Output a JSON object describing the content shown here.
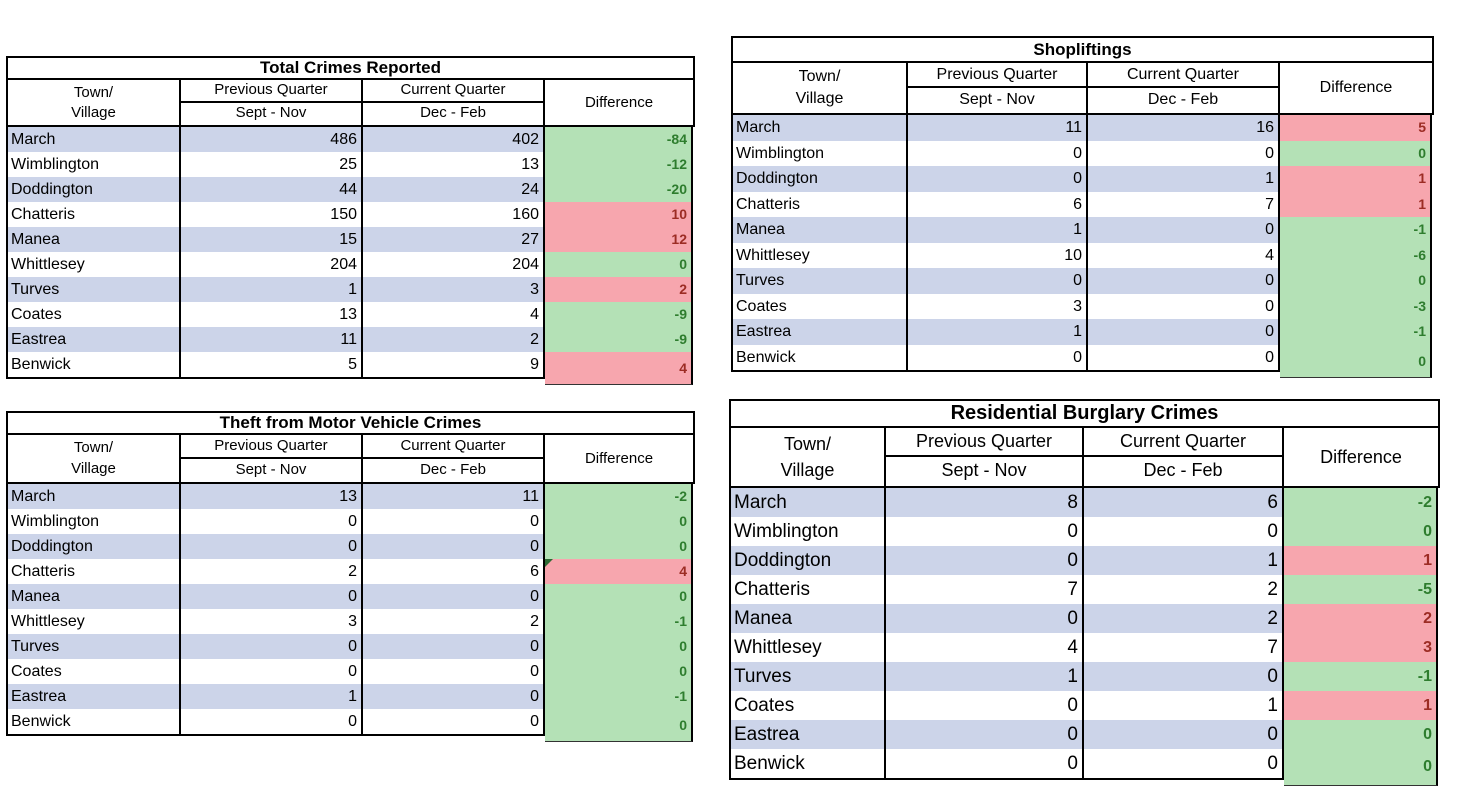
{
  "headers": {
    "town_line1": "Town/",
    "town_line2": "Village",
    "previous_quarter": "Previous Quarter",
    "previous_period": "Sept - Nov",
    "current_quarter": "Current Quarter",
    "current_period": "Dec - Feb",
    "difference": "Difference"
  },
  "colors": {
    "row_stripe": "#ccd4e9",
    "row_plain": "#ffffff",
    "diff_increase_fill": "#f7a6ae",
    "diff_decrease_fill": "#b4e1b6",
    "diff_increase_text": "#9c2c24",
    "diff_decrease_text": "#2e7d2e",
    "border": "#000000",
    "comment_marker": "#2d6a33"
  },
  "tables": [
    {
      "title": "Total Crimes Reported",
      "rows": [
        {
          "town": "March",
          "prev": 486,
          "curr": 402,
          "diff": -84
        },
        {
          "town": "Wimblington",
          "prev": 25,
          "curr": 13,
          "diff": -12
        },
        {
          "town": "Doddington",
          "prev": 44,
          "curr": 24,
          "diff": -20
        },
        {
          "town": "Chatteris",
          "prev": 150,
          "curr": 160,
          "diff": 10
        },
        {
          "town": "Manea",
          "prev": 15,
          "curr": 27,
          "diff": 12
        },
        {
          "town": "Whittlesey",
          "prev": 204,
          "curr": 204,
          "diff": 0
        },
        {
          "town": "Turves",
          "prev": 1,
          "curr": 3,
          "diff": 2
        },
        {
          "town": "Coates",
          "prev": 13,
          "curr": 4,
          "diff": -9
        },
        {
          "town": "Eastrea",
          "prev": 11,
          "curr": 2,
          "diff": -9
        },
        {
          "town": "Benwick",
          "prev": 5,
          "curr": 9,
          "diff": 4
        }
      ]
    },
    {
      "title": "Shopliftings",
      "rows": [
        {
          "town": "March",
          "prev": 11,
          "curr": 16,
          "diff": 5
        },
        {
          "town": "Wimblington",
          "prev": 0,
          "curr": 0,
          "diff": 0
        },
        {
          "town": "Doddington",
          "prev": 0,
          "curr": 1,
          "diff": 1
        },
        {
          "town": "Chatteris",
          "prev": 6,
          "curr": 7,
          "diff": 1
        },
        {
          "town": "Manea",
          "prev": 1,
          "curr": 0,
          "diff": -1
        },
        {
          "town": "Whittlesey",
          "prev": 10,
          "curr": 4,
          "diff": -6
        },
        {
          "town": "Turves",
          "prev": 0,
          "curr": 0,
          "diff": 0
        },
        {
          "town": "Coates",
          "prev": 3,
          "curr": 0,
          "diff": -3
        },
        {
          "town": "Eastrea",
          "prev": 1,
          "curr": 0,
          "diff": -1
        },
        {
          "town": "Benwick",
          "prev": 0,
          "curr": 0,
          "diff": 0
        }
      ]
    },
    {
      "title": "Theft from Motor Vehicle Crimes",
      "rows": [
        {
          "town": "March",
          "prev": 13,
          "curr": 11,
          "diff": -2
        },
        {
          "town": "Wimblington",
          "prev": 0,
          "curr": 0,
          "diff": 0
        },
        {
          "town": "Doddington",
          "prev": 0,
          "curr": 0,
          "diff": 0
        },
        {
          "town": "Chatteris",
          "prev": 2,
          "curr": 6,
          "diff": 4,
          "has_marker": true
        },
        {
          "town": "Manea",
          "prev": 0,
          "curr": 0,
          "diff": 0
        },
        {
          "town": "Whittlesey",
          "prev": 3,
          "curr": 2,
          "diff": -1
        },
        {
          "town": "Turves",
          "prev": 0,
          "curr": 0,
          "diff": 0
        },
        {
          "town": "Coates",
          "prev": 0,
          "curr": 0,
          "diff": 0
        },
        {
          "town": "Eastrea",
          "prev": 1,
          "curr": 0,
          "diff": -1
        },
        {
          "town": "Benwick",
          "prev": 0,
          "curr": 0,
          "diff": 0
        }
      ]
    },
    {
      "title": "Residential Burglary Crimes",
      "rows": [
        {
          "town": "March",
          "prev": 8,
          "curr": 6,
          "diff": -2
        },
        {
          "town": "Wimblington",
          "prev": 0,
          "curr": 0,
          "diff": 0
        },
        {
          "town": "Doddington",
          "prev": 0,
          "curr": 1,
          "diff": 1
        },
        {
          "town": "Chatteris",
          "prev": 7,
          "curr": 2,
          "diff": -5
        },
        {
          "town": "Manea",
          "prev": 0,
          "curr": 2,
          "diff": 2
        },
        {
          "town": "Whittlesey",
          "prev": 4,
          "curr": 7,
          "diff": 3
        },
        {
          "town": "Turves",
          "prev": 1,
          "curr": 0,
          "diff": -1
        },
        {
          "town": "Coates",
          "prev": 0,
          "curr": 1,
          "diff": 1
        },
        {
          "town": "Eastrea",
          "prev": 0,
          "curr": 0,
          "diff": 0
        },
        {
          "town": "Benwick",
          "prev": 0,
          "curr": 0,
          "diff": 0
        }
      ]
    }
  ]
}
